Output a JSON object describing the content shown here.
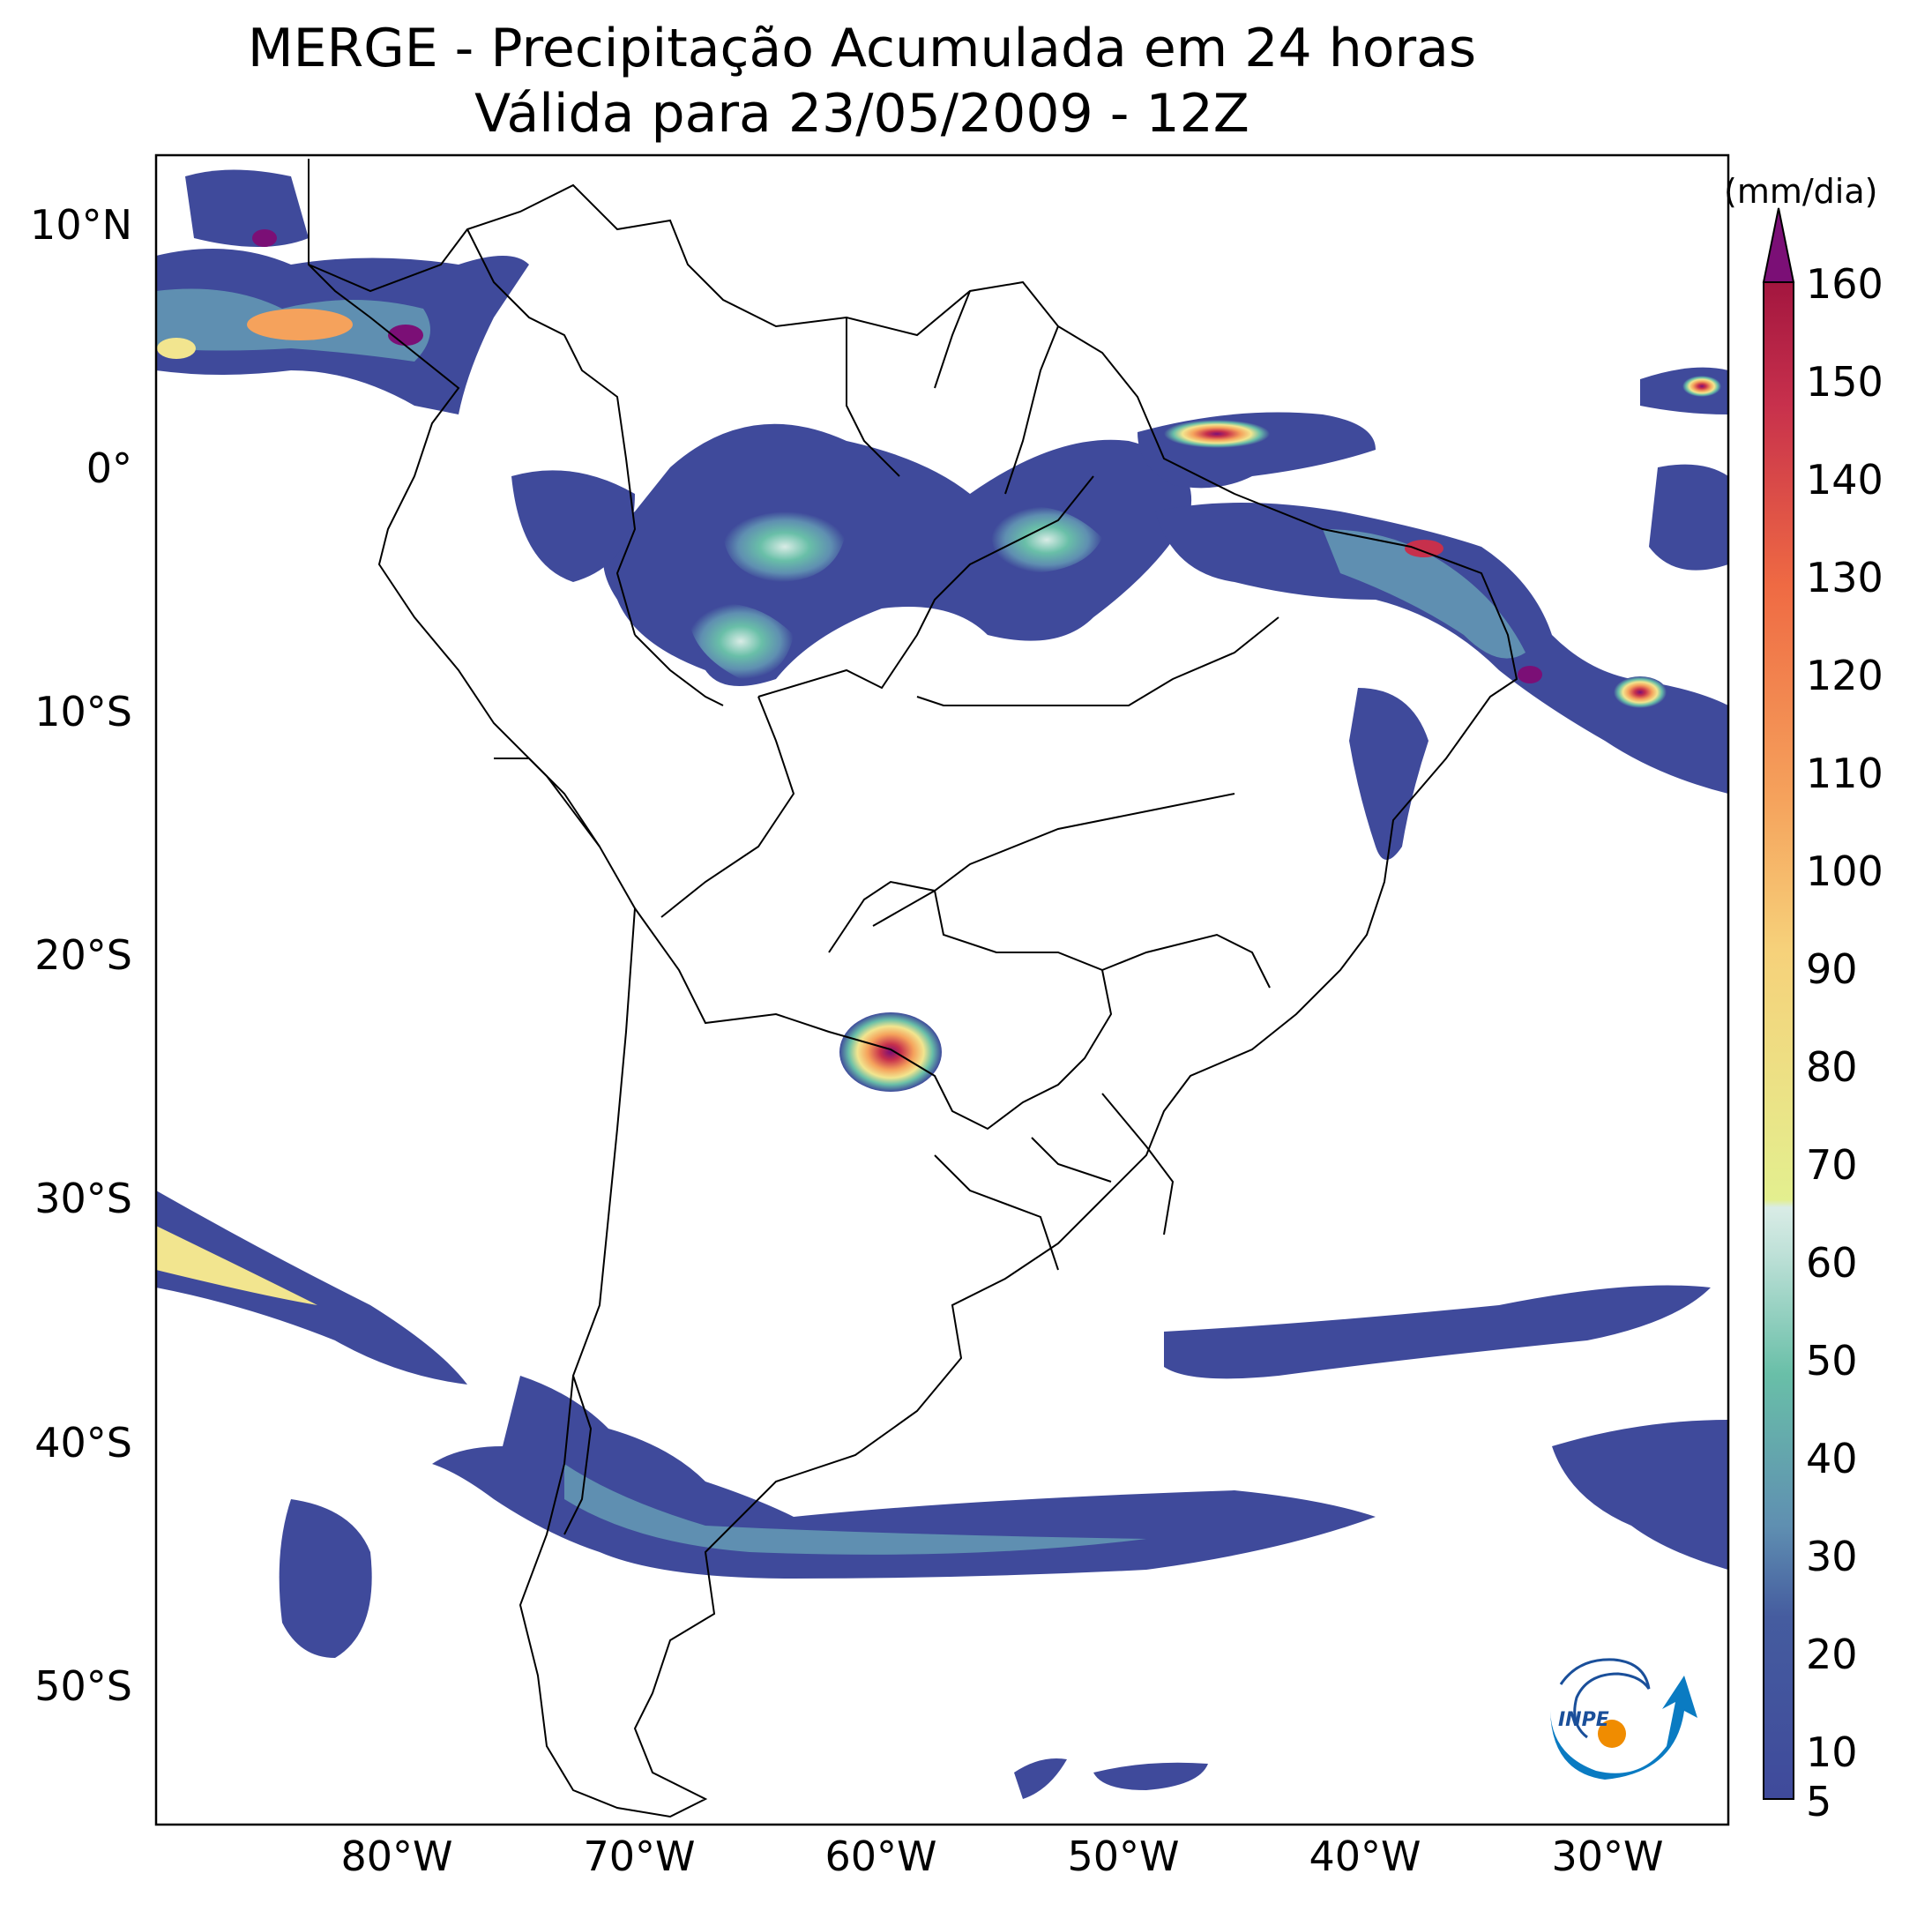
{
  "title": {
    "line1": "MERGE - Precipitação Acumulada em 24 horas",
    "line2": "Válida para 23/05/2009 - 12Z"
  },
  "map": {
    "region": "South America",
    "lon_range": [
      -90,
      -25
    ],
    "lat_range": [
      -55,
      13
    ],
    "lat_labels": [
      "10°N",
      "0°",
      "10°S",
      "20°S",
      "30°S",
      "40°S",
      "50°S"
    ],
    "lon_labels": [
      "80°W",
      "70°W",
      "60°W",
      "50°W",
      "40°W",
      "30°W"
    ],
    "features": [
      "coastlines",
      "country borders",
      "state borders"
    ],
    "highlighted_rainfall_areas": [
      "northern South America / Colombia and Venezuela",
      "Amazon basin and northeast Brazil coast",
      "Paraguay (maximum)",
      "southern Chile and Patagonia",
      "South Atlantic bands",
      "South Pacific band"
    ]
  },
  "colorbar": {
    "unit": "(mm/dia)",
    "ticks": [
      "5",
      "10",
      "20",
      "30",
      "40",
      "50",
      "60",
      "70",
      "80",
      "90",
      "100",
      "110",
      "120",
      "130",
      "140",
      "150",
      "160"
    ],
    "extend": "max",
    "colors": {
      "low": "#3f4a9b",
      "mid_low": "#5f8fb1",
      "mid": "#69bfa8",
      "light": "#d9ece6",
      "yellow": "#f2e58f",
      "orange": "#f5a25c",
      "red": "#c7304c",
      "max": "#7b0f76"
    }
  },
  "logo": {
    "text": "INPE"
  }
}
